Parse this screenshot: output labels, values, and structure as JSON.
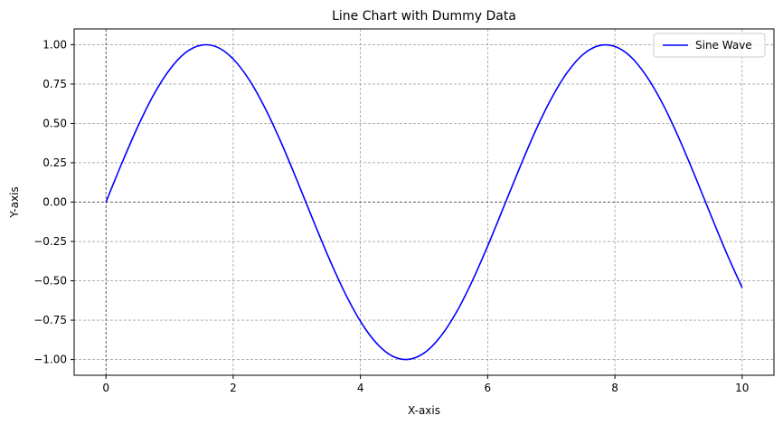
{
  "chart_data": {
    "type": "line",
    "title": "Line Chart with Dummy Data",
    "xlabel": "X-axis",
    "ylabel": "Y-axis",
    "xlim": [
      -0.5,
      10.5
    ],
    "ylim": [
      -1.1,
      1.1
    ],
    "x_ticks": [
      0,
      2,
      4,
      6,
      8,
      10
    ],
    "x_tick_labels": [
      "0",
      "2",
      "4",
      "6",
      "8",
      "10"
    ],
    "y_ticks": [
      -1.0,
      -0.75,
      -0.5,
      -0.25,
      0.0,
      0.25,
      0.5,
      0.75,
      1.0
    ],
    "y_tick_labels": [
      "−1.00",
      "−0.75",
      "−0.50",
      "−0.25",
      "0.00",
      "0.25",
      "0.50",
      "0.75",
      "1.00"
    ],
    "grid": true,
    "reference_lines": {
      "x": 0,
      "y": 0
    },
    "legend": {
      "position": "top-right"
    },
    "series": [
      {
        "name": "Sine Wave",
        "color": "#0000ff",
        "x": [
          0,
          0.25,
          0.5,
          0.75,
          1,
          1.25,
          1.5,
          1.75,
          2,
          2.25,
          2.5,
          2.75,
          3,
          3.25,
          3.5,
          3.75,
          4,
          4.25,
          4.5,
          4.75,
          5,
          5.25,
          5.5,
          5.75,
          6,
          6.25,
          6.5,
          6.75,
          7,
          7.25,
          7.5,
          7.75,
          8,
          8.25,
          8.5,
          8.75,
          9,
          9.25,
          9.5,
          9.75,
          10
        ],
        "y": [
          0,
          0.247,
          0.479,
          0.682,
          0.841,
          0.949,
          0.997,
          0.984,
          0.909,
          0.778,
          0.598,
          0.382,
          0.141,
          -0.108,
          -0.351,
          -0.572,
          -0.757,
          -0.895,
          -0.978,
          -0.999,
          -0.959,
          -0.859,
          -0.706,
          -0.508,
          -0.279,
          -0.033,
          0.215,
          0.451,
          0.657,
          0.823,
          0.938,
          0.994,
          0.989,
          0.923,
          0.798,
          0.625,
          0.412,
          0.174,
          -0.075,
          -0.319,
          -0.544
        ]
      }
    ]
  }
}
